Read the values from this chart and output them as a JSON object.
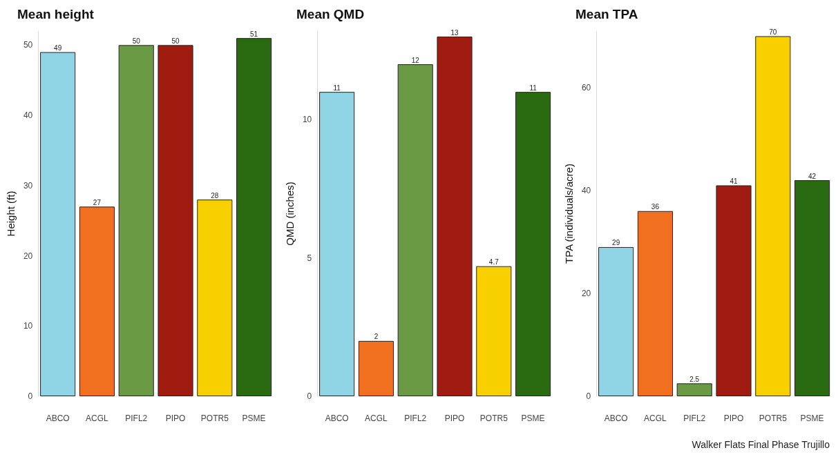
{
  "chart_data": [
    {
      "type": "bar",
      "title": "Mean height",
      "ylabel": "Height (ft)",
      "categories": [
        "ABCO",
        "ACGL",
        "PIFL2",
        "PIPO",
        "POTR5",
        "PSME"
      ],
      "values": [
        49,
        27,
        50,
        50,
        28,
        51
      ],
      "colors": [
        "#8fd5e6",
        "#f07020",
        "#6b9a45",
        "#a01c10",
        "#f8d000",
        "#2a6a10"
      ],
      "ylim": [
        0,
        52
      ],
      "yticks": [
        0,
        10,
        20,
        30,
        40,
        50
      ],
      "grid": false,
      "data_labels": true
    },
    {
      "type": "bar",
      "title": "Mean QMD",
      "ylabel": "QMD (inches)",
      "categories": [
        "ABCO",
        "ACGL",
        "PIFL2",
        "PIPO",
        "POTR5",
        "PSME"
      ],
      "values": [
        11,
        2,
        12,
        13,
        4.7,
        11
      ],
      "colors": [
        "#8fd5e6",
        "#f07020",
        "#6b9a45",
        "#a01c10",
        "#f8d000",
        "#2a6a10"
      ],
      "ylim": [
        0,
        13.2
      ],
      "yticks": [
        0,
        5,
        10
      ],
      "grid": false,
      "data_labels": true
    },
    {
      "type": "bar",
      "title": "Mean TPA",
      "ylabel": "TPA (individuals/acre)",
      "categories": [
        "ABCO",
        "ACGL",
        "PIFL2",
        "PIPO",
        "POTR5",
        "PSME"
      ],
      "values": [
        29,
        36,
        2.5,
        41,
        70,
        42
      ],
      "colors": [
        "#8fd5e6",
        "#f07020",
        "#6b9a45",
        "#a01c10",
        "#f8d000",
        "#2a6a10"
      ],
      "ylim": [
        0,
        71
      ],
      "yticks": [
        0,
        20,
        40,
        60
      ],
      "grid": false,
      "data_labels": true,
      "annotations": [
        "Walker Flats Final Phase Trujillo"
      ]
    }
  ]
}
